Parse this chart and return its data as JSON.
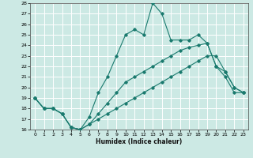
{
  "xlabel": "Humidex (Indice chaleur)",
  "xlim": [
    -0.5,
    23.5
  ],
  "ylim": [
    16,
    28
  ],
  "yticks": [
    16,
    17,
    18,
    19,
    20,
    21,
    22,
    23,
    24,
    25,
    26,
    27,
    28
  ],
  "xticks": [
    0,
    1,
    2,
    3,
    4,
    5,
    6,
    7,
    8,
    9,
    10,
    11,
    12,
    13,
    14,
    15,
    16,
    17,
    18,
    19,
    20,
    21,
    22,
    23
  ],
  "background_color": "#cce9e4",
  "grid_color": "#ffffff",
  "line_color": "#1a7a6e",
  "line1_x": [
    0,
    1,
    2,
    3,
    4,
    5,
    6,
    7,
    8,
    9,
    10,
    11,
    12,
    13,
    14,
    15,
    16,
    17,
    18,
    19,
    20,
    21,
    22,
    23
  ],
  "line1_y": [
    19,
    18,
    18,
    17.5,
    16.2,
    16,
    17.2,
    19.5,
    21,
    23,
    25,
    25.5,
    25,
    28,
    27,
    24.5,
    24.5,
    24.5,
    25,
    24.2,
    22,
    21,
    19.5,
    19.5
  ],
  "line2_x": [
    0,
    1,
    2,
    3,
    4,
    5,
    6,
    7,
    8,
    9,
    10,
    11,
    12,
    13,
    14,
    15,
    16,
    17,
    18,
    19,
    20,
    21,
    22,
    23
  ],
  "line2_y": [
    19,
    18,
    18,
    17.5,
    16.2,
    16,
    16.5,
    17.5,
    18.5,
    19.5,
    20.5,
    21,
    21.5,
    22,
    22.5,
    23,
    23.5,
    23.8,
    24,
    24.2,
    22,
    21.5,
    20,
    19.5
  ],
  "line3_x": [
    0,
    1,
    2,
    3,
    4,
    5,
    6,
    7,
    8,
    9,
    10,
    11,
    12,
    13,
    14,
    15,
    16,
    17,
    18,
    19,
    20,
    21,
    22,
    23
  ],
  "line3_y": [
    19,
    18,
    18,
    17.5,
    16.2,
    16,
    16.5,
    17,
    17.5,
    18,
    18.5,
    19,
    19.5,
    20,
    20.5,
    21,
    21.5,
    22,
    22.5,
    23,
    23,
    21.5,
    20,
    19.5
  ]
}
